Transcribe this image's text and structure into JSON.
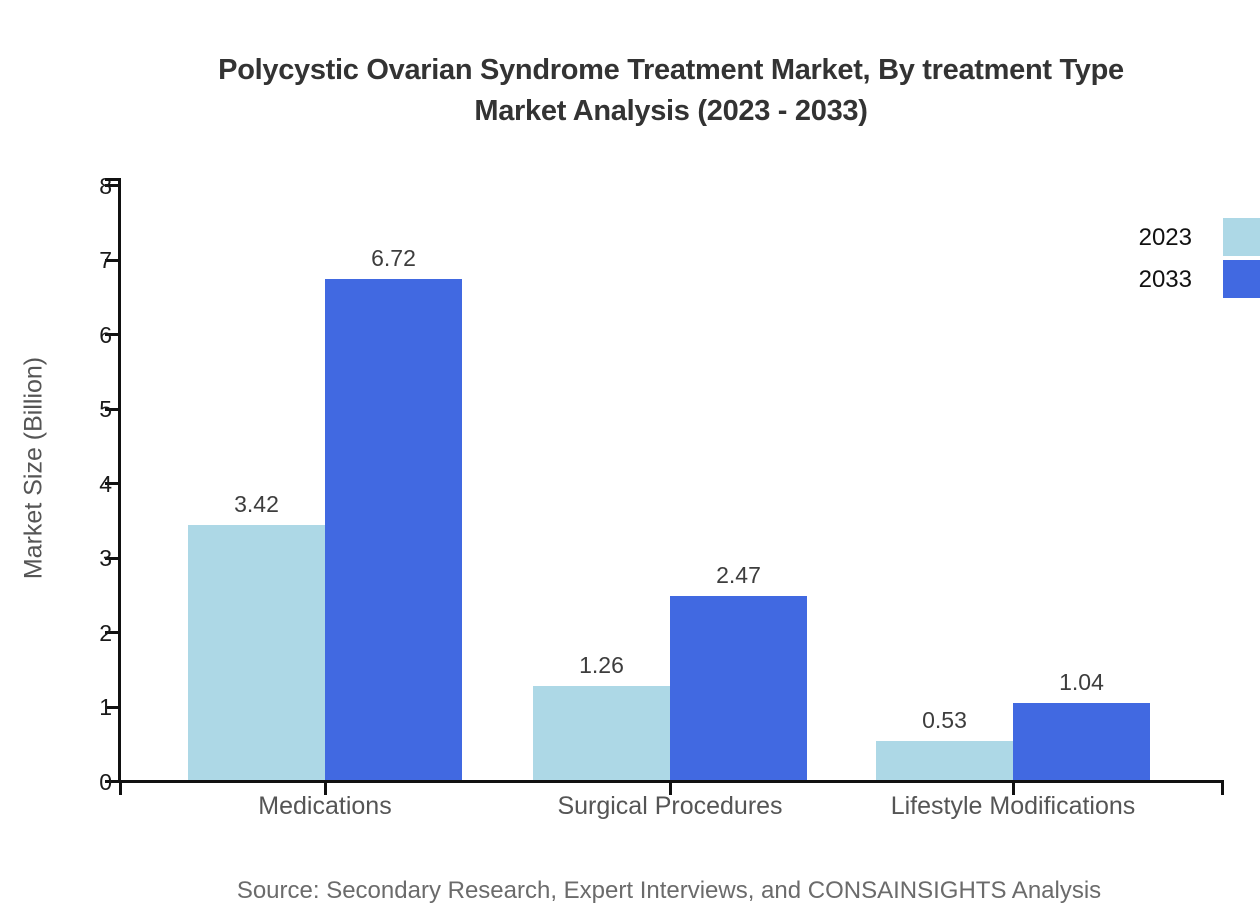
{
  "chart_data": {
    "type": "bar",
    "title": "Polycystic Ovarian Syndrome Treatment Market, By treatment Type Market Analysis (2023 - 2033)",
    "title_lines": [
      "Polycystic Ovarian Syndrome Treatment Market, By treatment Type",
      "Market Analysis (2023 - 2033)"
    ],
    "ylabel": "Market Size (Billion)",
    "xlabel": "",
    "ylim": [
      0,
      8
    ],
    "yticks": [
      0,
      1,
      2,
      3,
      4,
      5,
      6,
      7,
      8
    ],
    "grid": false,
    "legend_position": "top-right",
    "categories": [
      "Medications",
      "Surgical Procedures",
      "Lifestyle Modifications"
    ],
    "series": [
      {
        "name": "2023",
        "color": "#ADD8E6",
        "values": [
          3.42,
          1.26,
          0.53
        ]
      },
      {
        "name": "2033",
        "color": "#4169E1",
        "values": [
          6.72,
          2.47,
          1.04
        ]
      }
    ],
    "value_labels": [
      "3.42",
      "6.72",
      "1.26",
      "2.47",
      "0.53",
      "1.04"
    ],
    "source": "Source: Secondary Research, Expert Interviews, and CONSAINSIGHTS Analysis",
    "colors": {
      "axis": "#111111",
      "title_text": "#333333",
      "tick_text": "#1a1a1a",
      "category_text": "#555555",
      "value_text": "#3d3d3d",
      "source_text": "#6b6b6b",
      "background": "#ffffff"
    }
  }
}
